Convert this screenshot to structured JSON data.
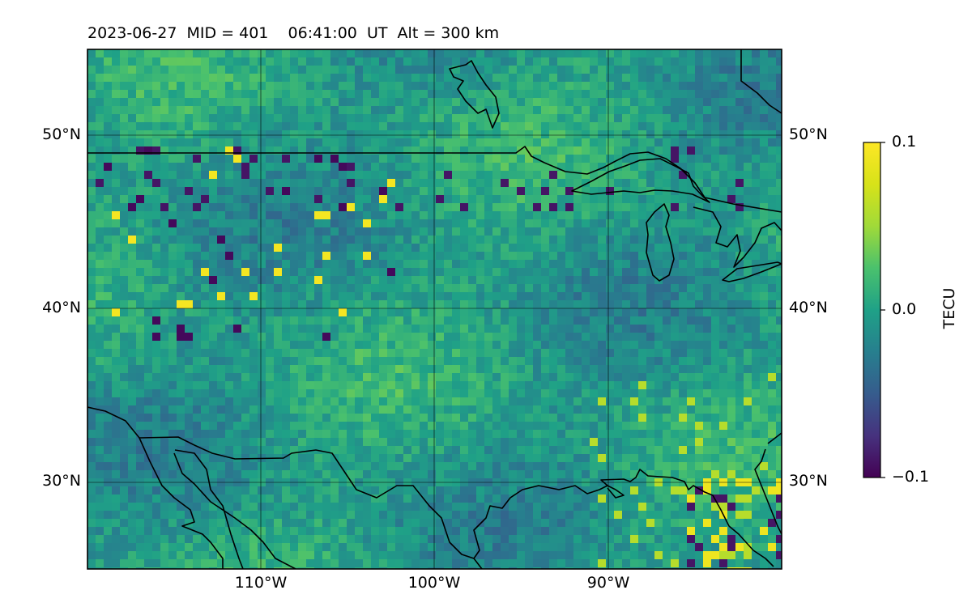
{
  "map": {
    "title": "2023-06-27  MID = 401    06:41:00  UT  Alt = 300 km",
    "lat_ticks": [
      "50°N",
      "40°N",
      "30°N"
    ],
    "lon_ticks": [
      "110°W",
      "100°W",
      "90°W"
    ],
    "colorbar": {
      "label": "TECU",
      "colormap": "viridis",
      "tick_labels": [
        "0.1",
        "0.0",
        "−0.1"
      ]
    }
  },
  "chart_data": {
    "type": "heatmap",
    "title": "2023-06-27  MID = 401    06:41:00  UT  Alt = 300 km",
    "xlabel": "",
    "ylabel": "",
    "lon_range": [
      -120,
      -80
    ],
    "lat_range": [
      25,
      55
    ],
    "x_ticks": [
      -110,
      -100,
      -90
    ],
    "y_ticks": [
      30,
      40,
      50
    ],
    "colorbar_label": "TECU",
    "colorbar_range": [
      -0.1,
      0.1
    ],
    "colorbar_ticks": [
      -0.1,
      0.0,
      0.1
    ],
    "grid": true
  }
}
